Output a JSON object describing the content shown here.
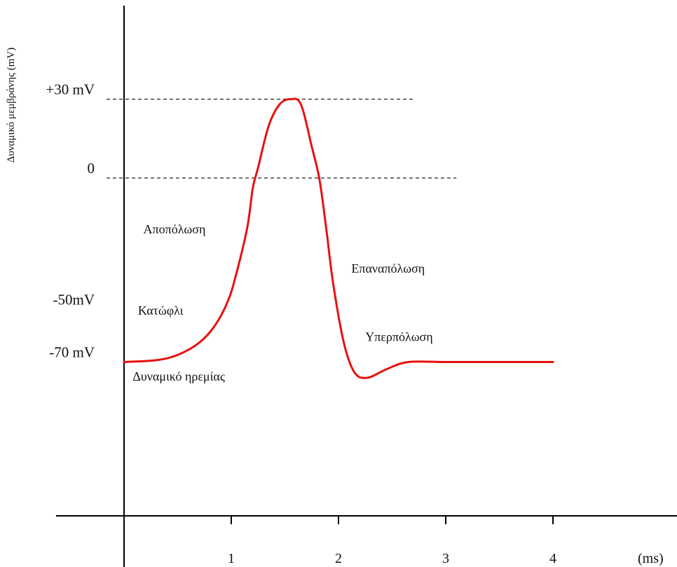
{
  "chart_data": {
    "type": "line",
    "title": "",
    "ylabel": "Δυναμικό μεμβράνης (mV)",
    "xlabel": "(ms)",
    "xlim": [
      0,
      5.1
    ],
    "ylim": [
      -100,
      52
    ],
    "x_ticks": [
      {
        "value": 1,
        "label": "1"
      },
      {
        "value": 2,
        "label": "2"
      },
      {
        "value": 3,
        "label": "3"
      },
      {
        "value": 4,
        "label": "4"
      }
    ],
    "y_levels": [
      {
        "value": 30,
        "label": "+30 mV",
        "dashed": true,
        "dash_to_x": 2.7
      },
      {
        "value": 0,
        "label": "0",
        "dashed": true,
        "dash_to_x": 3.1
      },
      {
        "value": -50,
        "label": "-50mV",
        "dashed": false
      },
      {
        "value": -70,
        "label": "-70 mV",
        "dashed": false
      }
    ],
    "series": [
      {
        "color": "#e8110f",
        "points": [
          [
            0,
            -70
          ],
          [
            0.3,
            -69.3
          ],
          [
            0.5,
            -67.3
          ],
          [
            0.7,
            -62.7
          ],
          [
            0.85,
            -56
          ],
          [
            0.97,
            -46.7
          ],
          [
            1.05,
            -36
          ],
          [
            1.15,
            -18.7
          ],
          [
            1.2,
            -4
          ],
          [
            1.25,
            4
          ],
          [
            1.35,
            20
          ],
          [
            1.45,
            28
          ],
          [
            1.55,
            30
          ],
          [
            1.65,
            28
          ],
          [
            1.75,
            12
          ],
          [
            1.82,
            0
          ],
          [
            1.88,
            -17.3
          ],
          [
            1.95,
            -40
          ],
          [
            2.05,
            -62.7
          ],
          [
            2.15,
            -74
          ],
          [
            2.27,
            -76
          ],
          [
            2.45,
            -72.7
          ],
          [
            2.65,
            -70
          ],
          [
            3.0,
            -70
          ],
          [
            3.5,
            -70
          ],
          [
            4.0,
            -70
          ]
        ]
      }
    ],
    "annotations": [
      {
        "text": "Αποπόλωση",
        "x": 0.18,
        "y": -21
      },
      {
        "text": "Επαναπόλωση",
        "x": 2.12,
        "y": -36
      },
      {
        "text": "Κατώφλι",
        "x": 0.13,
        "y": -52
      },
      {
        "text": "Υπερπόλωση",
        "x": 2.25,
        "y": -62
      },
      {
        "text": "Δυναμικό ηρεμίας",
        "x": 0.08,
        "y": -77
      }
    ],
    "grid": false,
    "legend": "none"
  }
}
